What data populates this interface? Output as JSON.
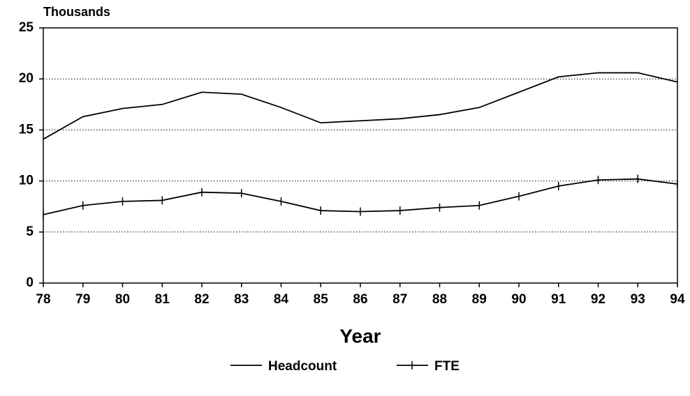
{
  "chart_data": {
    "type": "line",
    "ylabel": "Thousands",
    "xlabel": "Year",
    "categories": [
      "78",
      "79",
      "80",
      "81",
      "82",
      "83",
      "84",
      "85",
      "86",
      "87",
      "88",
      "89",
      "90",
      "91",
      "92",
      "93",
      "94"
    ],
    "series": [
      {
        "name": "Headcount",
        "color": "#000000",
        "marker": "none",
        "values": [
          14.1,
          16.3,
          17.1,
          17.5,
          18.7,
          18.5,
          17.2,
          15.7,
          15.9,
          16.1,
          16.5,
          17.2,
          18.7,
          20.2,
          20.6,
          20.6,
          19.7
        ]
      },
      {
        "name": "FTE",
        "color": "#000000",
        "marker": "tick",
        "values": [
          6.7,
          7.6,
          8.0,
          8.1,
          8.9,
          8.8,
          8.0,
          7.1,
          7.0,
          7.1,
          7.4,
          7.6,
          8.5,
          9.5,
          10.1,
          10.2,
          9.7
        ]
      }
    ],
    "ylim": [
      0,
      25
    ],
    "yticks": [
      0,
      5,
      10,
      15,
      20,
      25
    ],
    "grid": true,
    "legend": "bottom"
  }
}
